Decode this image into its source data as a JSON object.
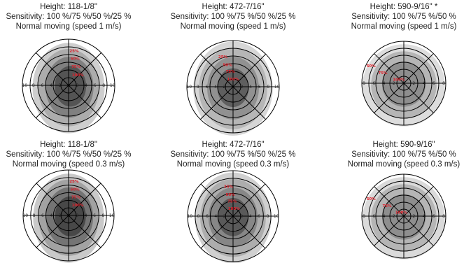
{
  "panels": [
    {
      "id": "p1",
      "caption": [
        "Height: 118-1/8\"",
        "Sensitivity: 100 %/75 %/50 %/25 %",
        "Normal moving (speed 1 m/s)"
      ],
      "axis_ticks": [
        "10",
        "8",
        "6",
        "4",
        "2",
        "2",
        "4",
        "6",
        "8",
        "10"
      ],
      "zone_marks": [
        "25%",
        "50%",
        "75%",
        "100%"
      ],
      "shading": [
        "#c9c9c9",
        "#a9a9a9",
        "#7b7b7b",
        "#4f4f4f"
      ]
    },
    {
      "id": "p2",
      "caption": [
        "Height: 472-7/16\"",
        "Sensitivity: 100 %/75 %/50 %/25 %",
        "Normal moving (speed 1 m/s)"
      ],
      "axis_ticks": [
        "10",
        "8",
        "6",
        "4",
        "2",
        "2",
        "4",
        "6",
        "8",
        "10"
      ],
      "zone_marks": [
        "25%",
        "50%",
        "75%",
        "100%"
      ],
      "shading": [
        "#d2d2d2",
        "#b3b3b3",
        "#8d8d8d",
        "#5a5a5a"
      ]
    },
    {
      "id": "p3",
      "caption": [
        "Height: 590-9/16\" *",
        "Sensitivity: 100 %/75 %/50 %",
        "Normal moving (speed 1 m/s)"
      ],
      "axis_ticks": [
        "8",
        "6",
        "4",
        "2",
        "2",
        "4",
        "6",
        "8"
      ],
      "zone_marks": [
        "50%",
        "75%",
        "100%"
      ],
      "shading": [
        "#d9d9d9",
        "#b0b0b0",
        "#8a8a8a"
      ]
    },
    {
      "id": "p4",
      "caption": [
        "Height: 118-1/8\"",
        "Sensitivity: 100 %/75 %/50 %/25 %",
        "Normal moving (speed 0.3 m/s)"
      ],
      "axis_ticks": [
        "10",
        "8",
        "6",
        "4",
        "2",
        "2",
        "4",
        "6",
        "8",
        "10"
      ],
      "zone_marks": [
        "25%",
        "50%",
        "75%",
        "100%"
      ],
      "shading": [
        "#c3c3c3",
        "#9d9d9d",
        "#6f6f6f",
        "#444444"
      ]
    },
    {
      "id": "p5",
      "caption": [
        "Height: 472-7/16\"",
        "Sensitivity: 100 %/75 %/50 %/25 %",
        "Normal moving (speed 0.3 m/s)"
      ],
      "axis_ticks": [
        "10",
        "8",
        "6",
        "4",
        "2",
        "2",
        "4",
        "6",
        "8",
        "10"
      ],
      "zone_marks": [
        "25%",
        "50%",
        "75%",
        "100%"
      ],
      "shading": [
        "#cbcbcb",
        "#a9a9a9",
        "#838383",
        "#555555"
      ]
    },
    {
      "id": "p6",
      "caption": [
        "Height: 590-9/16\"",
        "Sensitivity: 100 %/75 %/50 %",
        "Normal moving (speed 0.3 m/s)"
      ],
      "axis_ticks": [
        "8",
        "6",
        "4",
        "2",
        "2",
        "4",
        "6",
        "8"
      ],
      "zone_marks": [
        "50%",
        "75%",
        "100%"
      ],
      "shading": [
        "#d6d6d6",
        "#b0b0b0",
        "#8a8a8a"
      ]
    }
  ],
  "colors": {
    "ring_stroke": "#000000",
    "mark_text": "#e0202a"
  }
}
